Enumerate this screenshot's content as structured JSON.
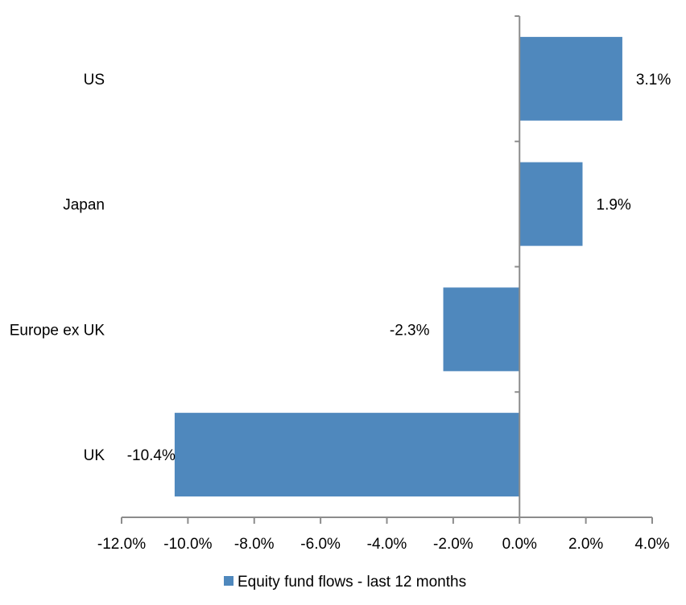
{
  "chart_data": {
    "type": "bar",
    "orientation": "horizontal",
    "categories": [
      "US",
      "Japan",
      "Europe ex UK",
      "UK"
    ],
    "series": [
      {
        "name": "Equity fund flows - last 12 months",
        "values": [
          3.1,
          1.9,
          -2.3,
          -10.4
        ],
        "color": "#4f88bd"
      }
    ],
    "data_labels": [
      "3.1%",
      "1.9%",
      "-2.3%",
      "-10.4%"
    ],
    "xlim": [
      -12,
      4
    ],
    "xticks": [
      -12,
      -10,
      -8,
      -6,
      -4,
      -2,
      0,
      2,
      4
    ],
    "xtick_labels": [
      "-12.0%",
      "-10.0%",
      "-8.0%",
      "-6.0%",
      "-4.0%",
      "-2.0%",
      "0.0%",
      "2.0%",
      "4.0%"
    ],
    "title": "",
    "xlabel": "",
    "ylabel": "",
    "grid": false,
    "legend": "bottom",
    "axis_color": "#8c8c8c"
  }
}
